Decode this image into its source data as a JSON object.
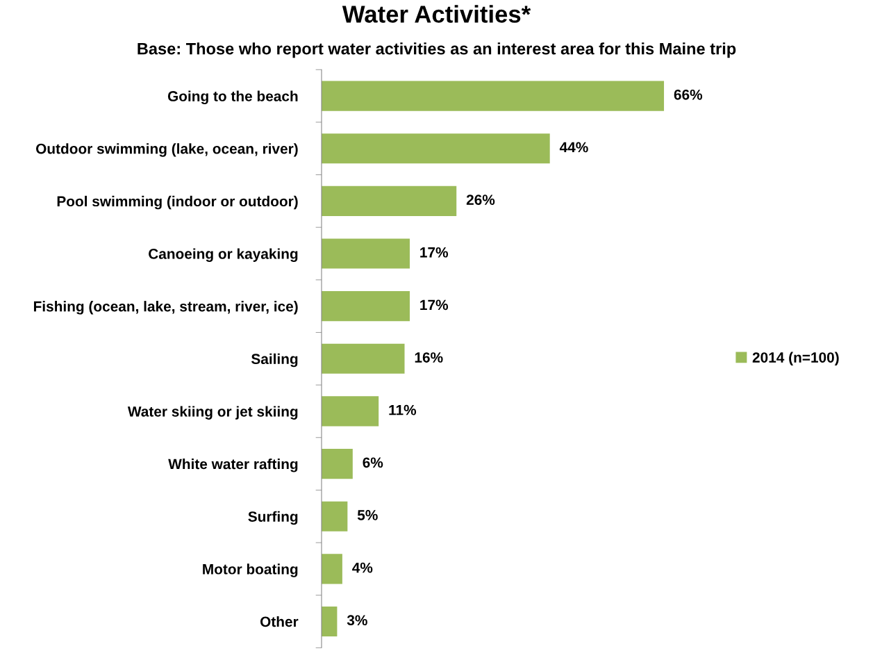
{
  "chart_data": {
    "type": "bar",
    "orientation": "horizontal",
    "title": "Water Activities*",
    "subtitle": "Base: Those who report water activities as an interest area for this Maine trip",
    "categories": [
      "Going to the beach",
      "Outdoor swimming (lake, ocean, river)",
      "Pool swimming (indoor or outdoor)",
      "Canoeing or kayaking",
      "Fishing (ocean, lake, stream, river, ice)",
      "Sailing",
      "Water skiing or jet skiing",
      "White water rafting",
      "Surfing",
      "Motor boating",
      "Other"
    ],
    "series": [
      {
        "name": "2014 (n=100)",
        "color": "#9bbb59",
        "values": [
          66,
          44,
          26,
          17,
          17,
          16,
          11,
          6,
          5,
          4,
          3
        ],
        "value_labels": [
          "66%",
          "44%",
          "26%",
          "17%",
          "17%",
          "16%",
          "11%",
          "6%",
          "5%",
          "4%",
          "3%"
        ]
      }
    ],
    "legend": "right",
    "grid": false,
    "tick_labels": "y"
  }
}
